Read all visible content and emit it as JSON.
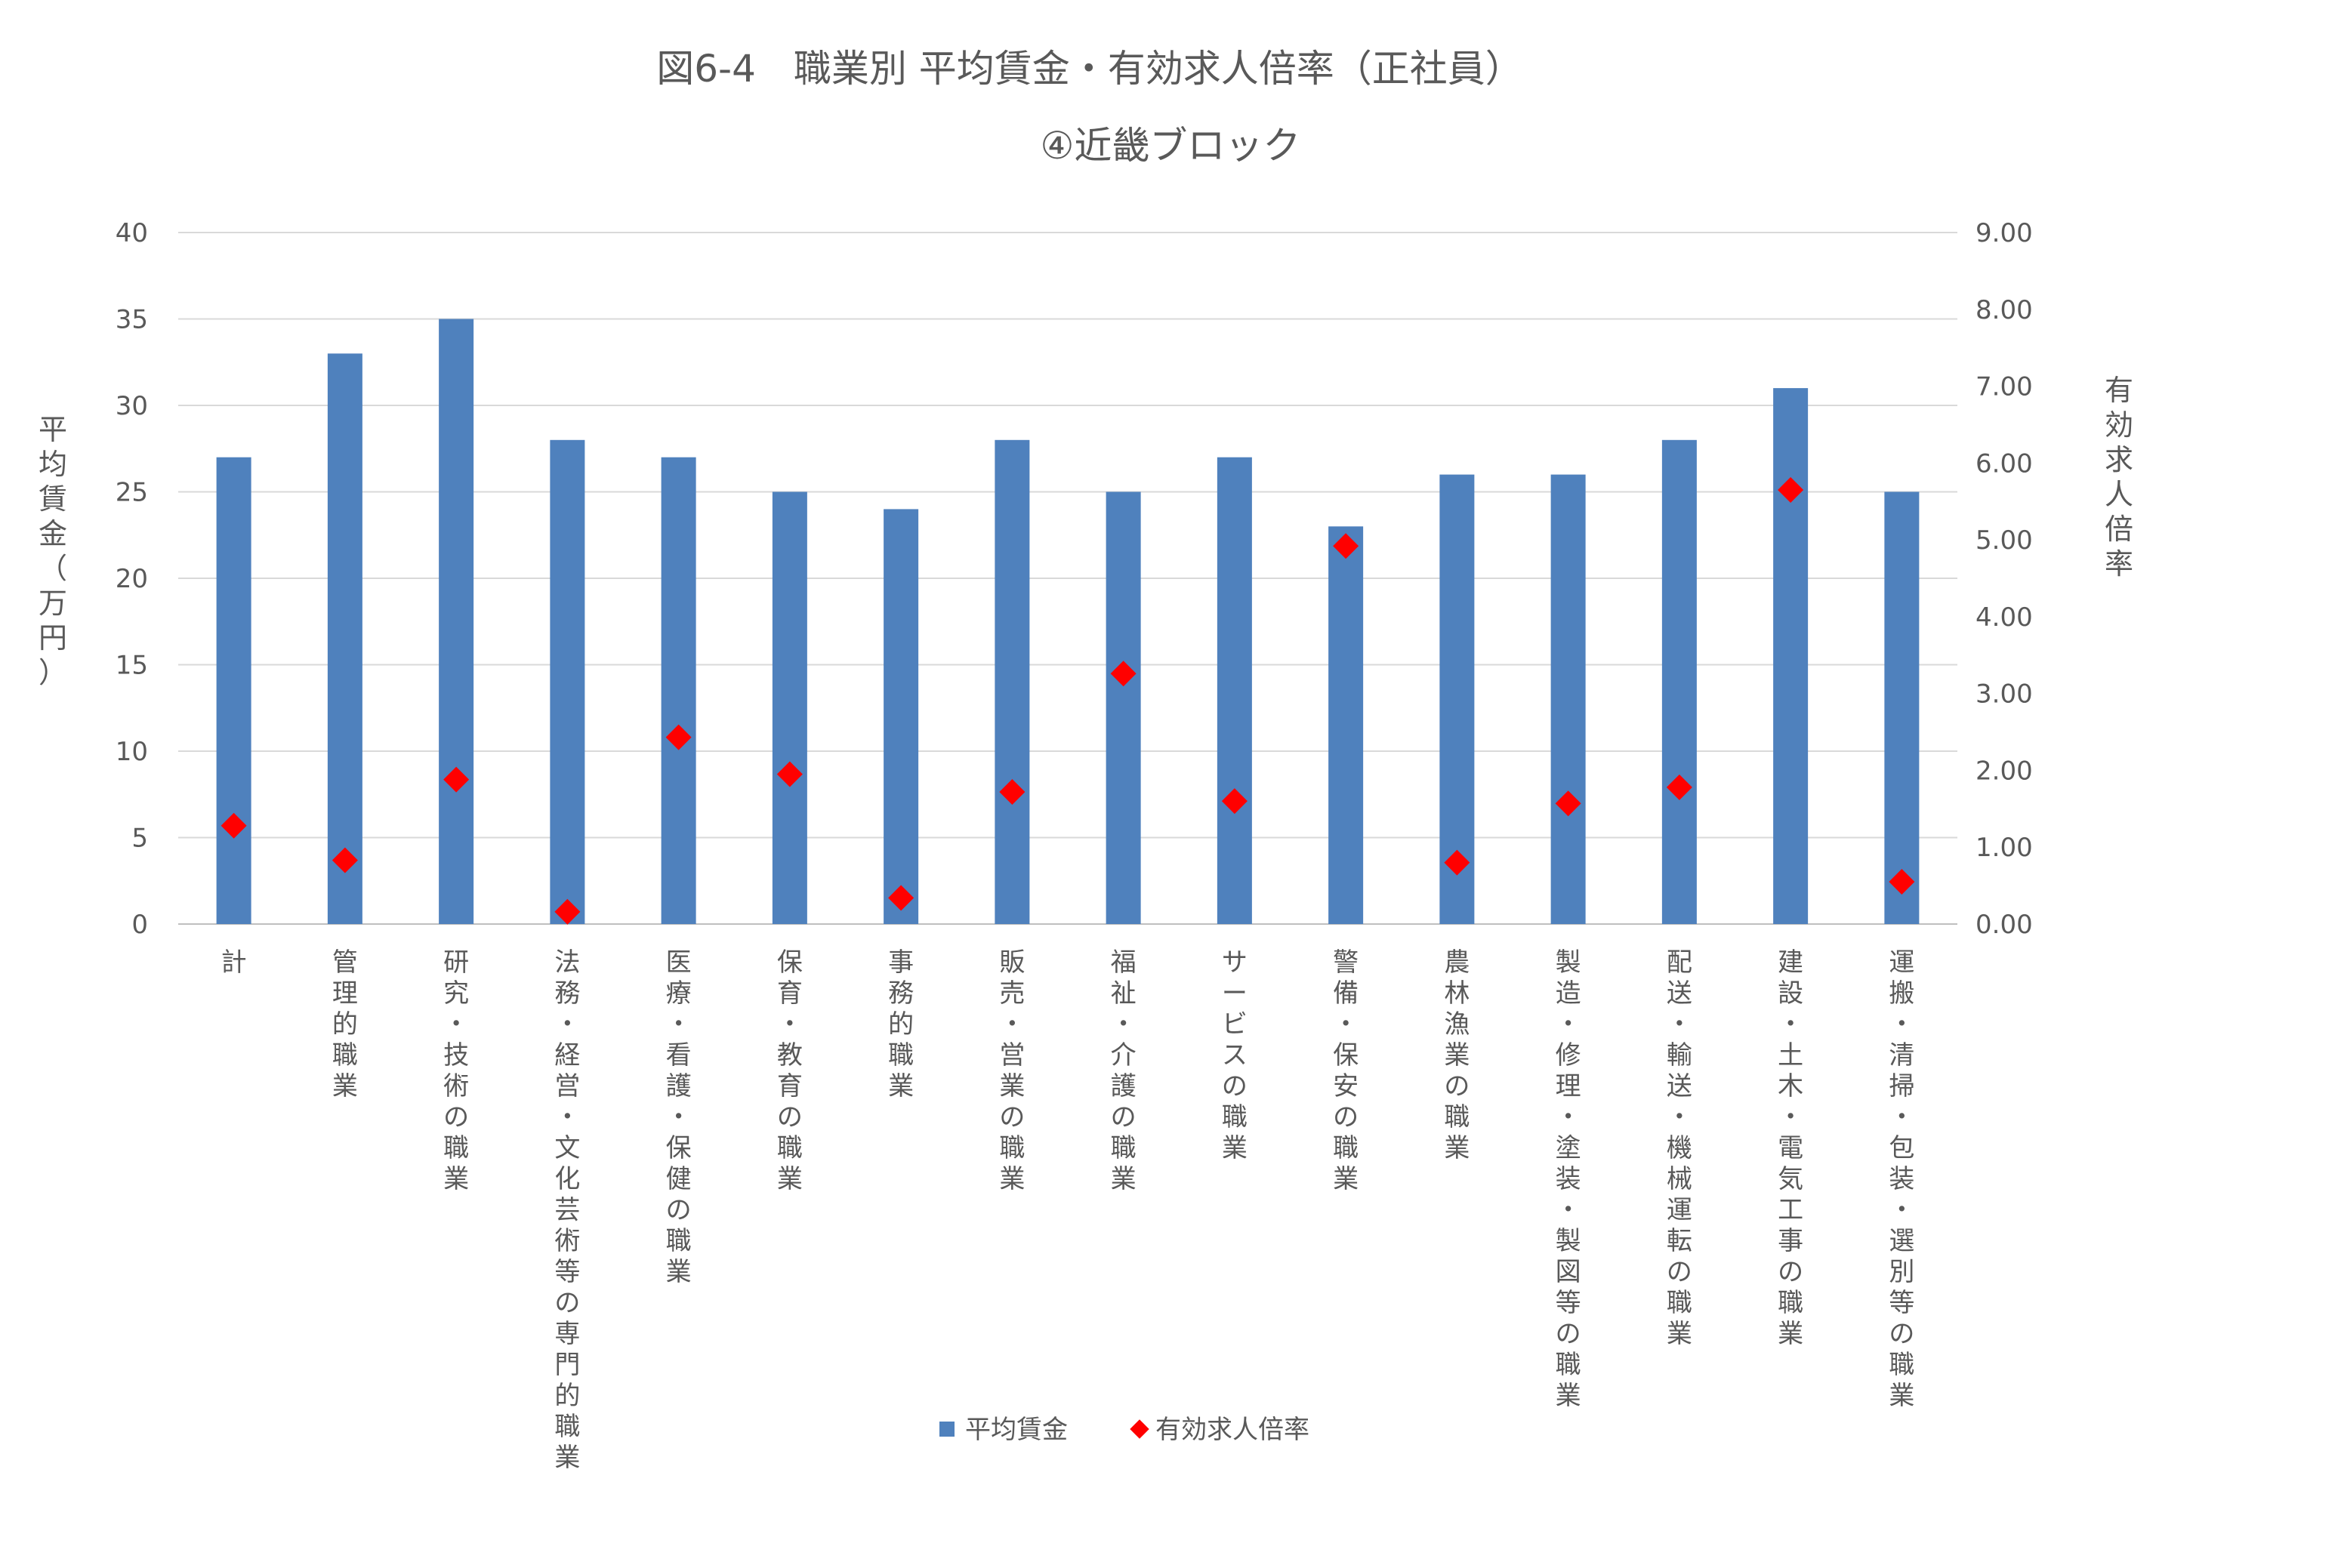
{
  "chart_data": {
    "type": "bar",
    "title": "図6-4　職業別 平均賃金・有効求人倍率（正社員）",
    "subtitle": "④近畿ブロック",
    "ylabel": "平均賃金（万円）",
    "y2label": "有効求人倍率",
    "ylim": [
      0,
      40
    ],
    "y2lim": [
      0,
      9
    ],
    "yticks": [
      "0",
      "5",
      "10",
      "15",
      "20",
      "25",
      "30",
      "35",
      "40"
    ],
    "y2ticks": [
      "0.00",
      "1.00",
      "2.00",
      "3.00",
      "4.00",
      "5.00",
      "6.00",
      "7.00",
      "8.00",
      "9.00"
    ],
    "grid": true,
    "legend_position": "bottom",
    "categories": [
      "計",
      "管理的職業",
      "研究・技術の職業",
      "法務・経営・文化芸術等の専門的職業",
      "医療・看護・保健の職業",
      "保育・教育の職業",
      "事務的職業",
      "販売・営業の職業",
      "福祉・介護の職業",
      "サービスの職業",
      "警備・保安の職業",
      "農林漁業の職業",
      "製造・修理・塗装・製図等の職業",
      "配送・輸送・機械運転の職業",
      "建設・土木・電気工事の職業",
      "運搬・清掃・包装・選別等の職業"
    ],
    "series": [
      {
        "name": "平均賃金",
        "type": "bar",
        "axis": "left",
        "color": "#4F81BD",
        "values": [
          27,
          33,
          35,
          28,
          27,
          25,
          24,
          28,
          25,
          27,
          23,
          26,
          26,
          28,
          31,
          25
        ]
      },
      {
        "name": "有効求人倍率",
        "type": "scatter",
        "marker": "diamond",
        "axis": "right",
        "color": "#FF0000",
        "values": [
          1.28,
          0.83,
          1.88,
          0.16,
          2.43,
          1.95,
          0.34,
          1.72,
          3.26,
          1.6,
          4.92,
          0.8,
          1.57,
          1.78,
          5.65,
          0.55
        ]
      }
    ]
  }
}
